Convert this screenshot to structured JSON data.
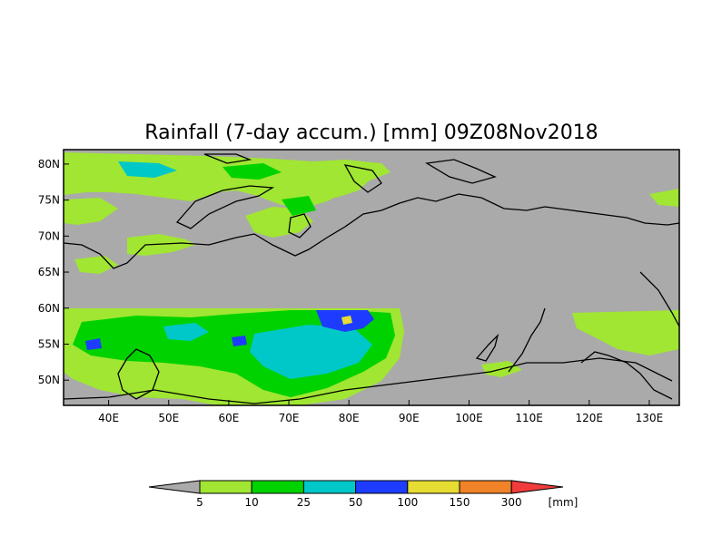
{
  "title": "Rainfall (7-day accum.) [mm] 09Z08Nov2018",
  "map": {
    "lon_range": [
      32.5,
      135
    ],
    "lat_range": [
      46.5,
      82
    ],
    "background_color": "#aaaaaa",
    "lon_ticks": [
      {
        "value": 40,
        "label": "40E"
      },
      {
        "value": 50,
        "label": "50E"
      },
      {
        "value": 60,
        "label": "60E"
      },
      {
        "value": 70,
        "label": "70E"
      },
      {
        "value": 80,
        "label": "80E"
      },
      {
        "value": 90,
        "label": "90E"
      },
      {
        "value": 100,
        "label": "100E"
      },
      {
        "value": 110,
        "label": "110E"
      },
      {
        "value": 120,
        "label": "120E"
      },
      {
        "value": 130,
        "label": "130E"
      }
    ],
    "lat_ticks": [
      {
        "value": 80,
        "label": "80N"
      },
      {
        "value": 75,
        "label": "75N"
      },
      {
        "value": 70,
        "label": "70N"
      },
      {
        "value": 65,
        "label": "65N"
      },
      {
        "value": 60,
        "label": "60N"
      },
      {
        "value": 55,
        "label": "55N"
      },
      {
        "value": 50,
        "label": "50N"
      }
    ]
  },
  "colorbar": {
    "unit_label": "[mm]",
    "under_color": "#aaaaaa",
    "over_color": "#f03c3c",
    "bins": [
      {
        "color": "#a0e632"
      },
      {
        "color": "#00d200"
      },
      {
        "color": "#00c8c8"
      },
      {
        "color": "#1e3cff"
      },
      {
        "color": "#e6dc32"
      },
      {
        "color": "#f08228"
      }
    ],
    "boundary_labels": [
      "5",
      "10",
      "25",
      "50",
      "100",
      "150",
      "300"
    ]
  }
}
